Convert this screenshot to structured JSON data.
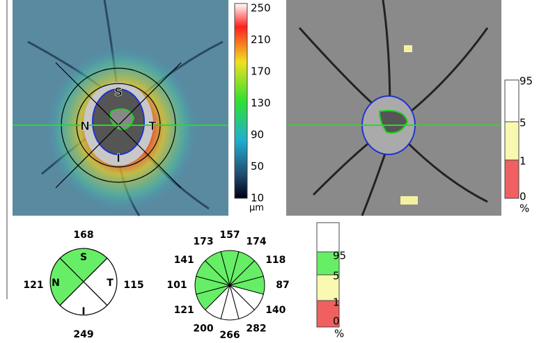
{
  "thickness_map": {
    "orientation_labels": [
      "S",
      "N",
      "T",
      "I"
    ],
    "colorbar": {
      "ticks": [
        250,
        210,
        170,
        130,
        90,
        50,
        10
      ],
      "unit": "μm"
    }
  },
  "deviation_map": {
    "legend": {
      "labels": [
        95,
        5,
        1,
        0
      ],
      "unit": "%"
    }
  },
  "quadrants": {
    "labels": [
      "S",
      "N",
      "T",
      "I"
    ],
    "values": {
      "S": 168,
      "N": 121,
      "T": 115,
      "I": 249
    }
  },
  "clock_hours": {
    "values": [
      157,
      174,
      118,
      87,
      140,
      282,
      266,
      200,
      121,
      101,
      141,
      173
    ]
  },
  "sector_legend": {
    "labels": [
      95,
      5,
      1,
      0
    ],
    "unit": "%"
  }
}
